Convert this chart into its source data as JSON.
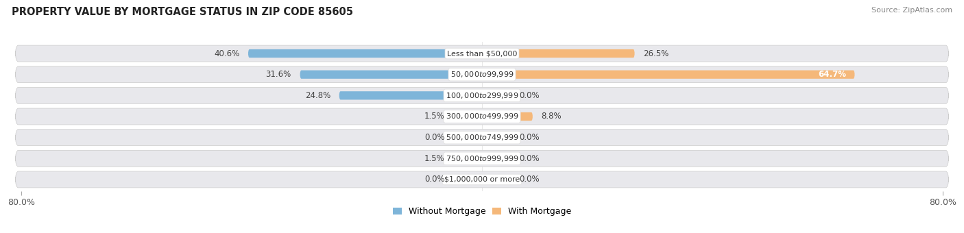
{
  "title": "PROPERTY VALUE BY MORTGAGE STATUS IN ZIP CODE 85605",
  "source": "Source: ZipAtlas.com",
  "categories": [
    "Less than $50,000",
    "$50,000 to $99,999",
    "$100,000 to $299,999",
    "$300,000 to $499,999",
    "$500,000 to $749,999",
    "$750,000 to $999,999",
    "$1,000,000 or more"
  ],
  "without_mortgage": [
    40.6,
    31.6,
    24.8,
    1.5,
    0.0,
    1.5,
    0.0
  ],
  "with_mortgage": [
    26.5,
    64.7,
    0.0,
    8.8,
    0.0,
    0.0,
    0.0
  ],
  "color_without": "#7eb5d9",
  "color_with": "#f5b87a",
  "color_without_light": "#aecde8",
  "color_with_light": "#f8d4a8",
  "row_bg_color": "#e8e8ec",
  "axis_limit": 80.0,
  "legend_labels": [
    "Without Mortgage",
    "With Mortgage"
  ],
  "min_stub": 5.0,
  "label_fontsize": 8.5,
  "cat_fontsize": 8.0,
  "title_fontsize": 10.5,
  "source_fontsize": 8.0
}
